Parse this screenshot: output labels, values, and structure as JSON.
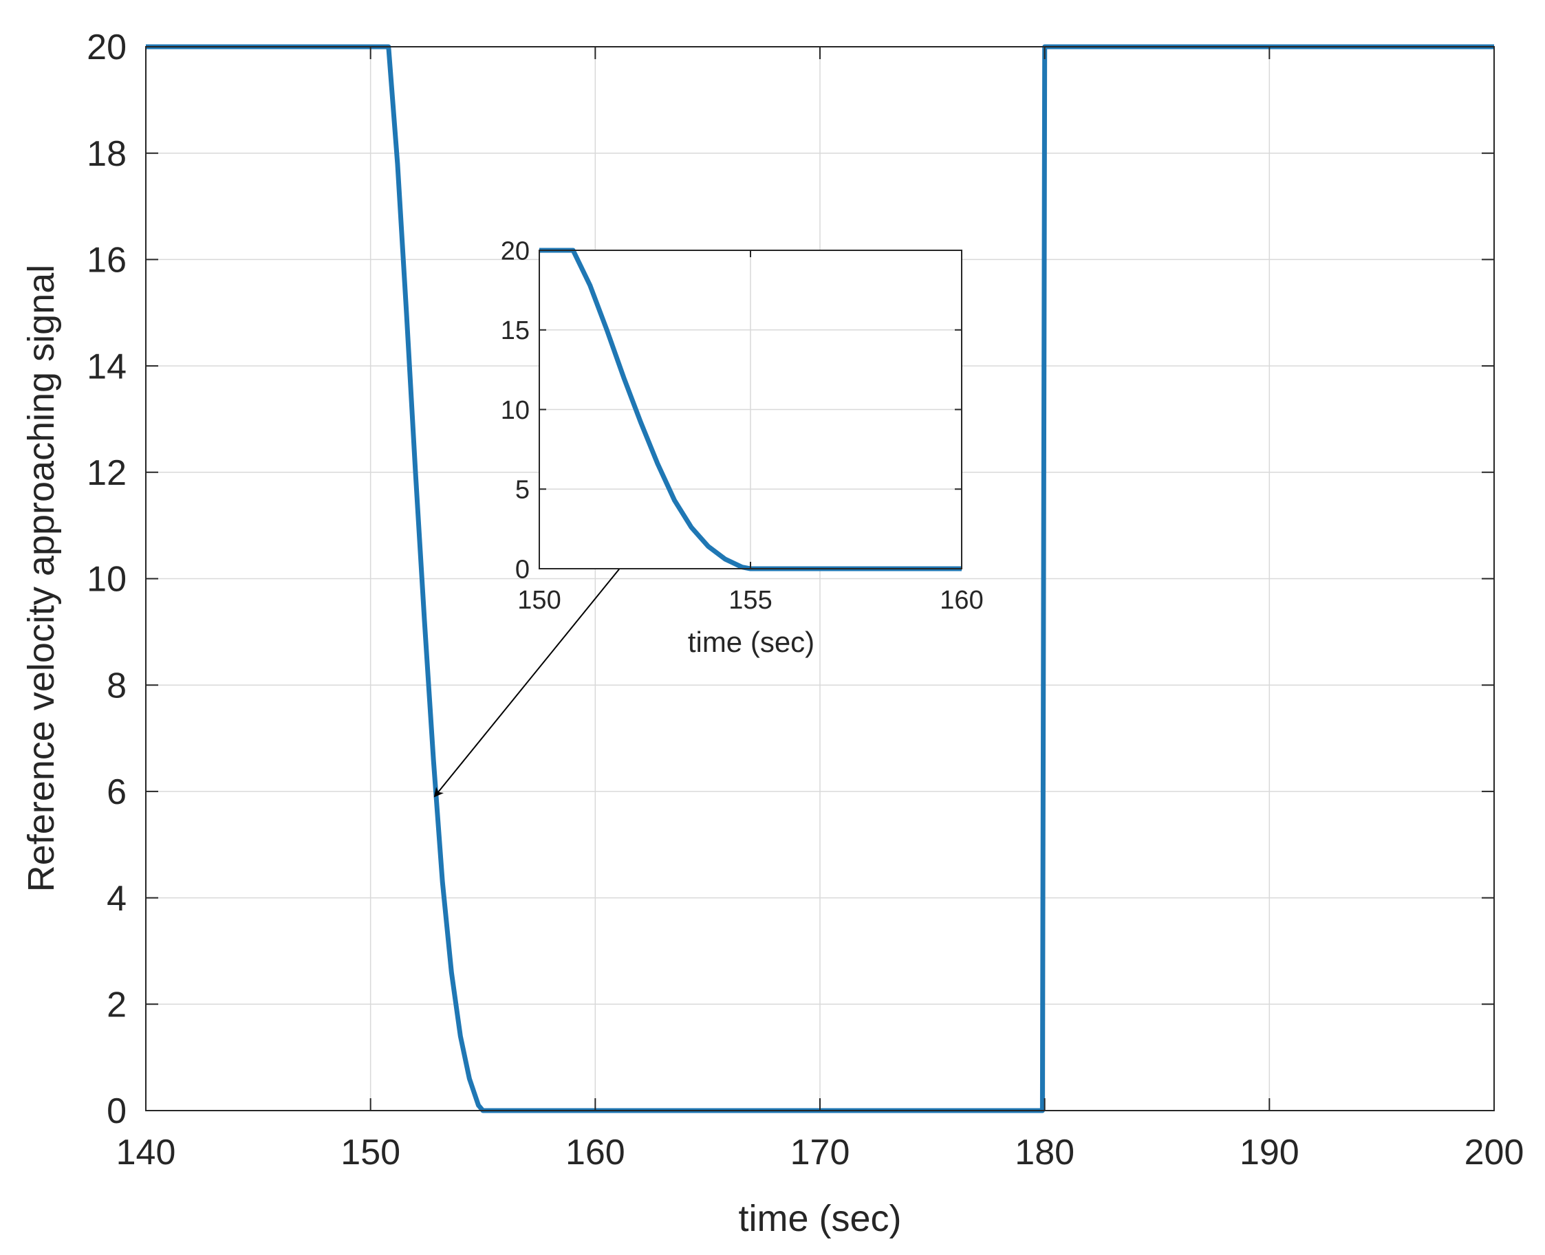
{
  "chart_data": [
    {
      "type": "line",
      "xlabel": "time (sec)",
      "ylabel": "Reference velocity approaching signal",
      "xlim": [
        140,
        200
      ],
      "ylim": [
        0,
        20
      ],
      "xticks": [
        140,
        150,
        160,
        170,
        180,
        190,
        200
      ],
      "yticks": [
        0,
        2,
        4,
        6,
        8,
        10,
        12,
        14,
        16,
        18,
        20
      ],
      "grid": true,
      "series": [
        {
          "color": "#1f77b4",
          "x": [
            140,
            150.8,
            151.2,
            151.6,
            152.0,
            152.4,
            152.8,
            153.2,
            153.6,
            154.0,
            154.4,
            154.8,
            155.0,
            179.9,
            180.0,
            200
          ],
          "y": [
            20,
            20,
            17.8,
            15.0,
            12.0,
            9.2,
            6.6,
            4.3,
            2.6,
            1.4,
            0.6,
            0.1,
            0,
            0,
            20,
            20
          ]
        }
      ]
    },
    {
      "type": "line",
      "xlabel": "time (sec)",
      "ylabel": "",
      "xlim": [
        150,
        160
      ],
      "ylim": [
        0,
        20
      ],
      "xticks": [
        150,
        155,
        160
      ],
      "yticks": [
        0,
        5,
        10,
        15,
        20
      ],
      "grid": true,
      "series": [
        {
          "color": "#1f77b4",
          "x": [
            150,
            150.8,
            151.2,
            151.6,
            152.0,
            152.4,
            152.8,
            153.2,
            153.6,
            154.0,
            154.4,
            154.8,
            155.0,
            160
          ],
          "y": [
            20,
            20,
            17.8,
            15.0,
            12.0,
            9.2,
            6.6,
            4.3,
            2.6,
            1.4,
            0.6,
            0.1,
            0,
            0
          ]
        }
      ]
    }
  ]
}
